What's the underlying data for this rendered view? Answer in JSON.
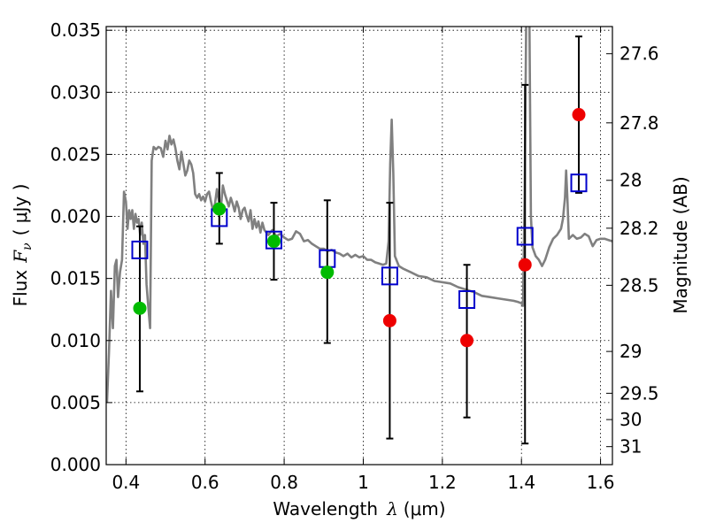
{
  "chart_data": {
    "type": "scatter",
    "xlabel_prefix": "Wavelength",
    "xlabel_symbol": "λ",
    "xlabel_unit": "(μm)",
    "ylabel_prefix": "Flux",
    "ylabel_symbol": "F",
    "ylabel_subscript": "ν",
    "ylabel_unit": "( μJy )",
    "y2label": "Magnitude (AB)",
    "xlim": [
      0.35,
      1.63
    ],
    "ylim": [
      0.0,
      0.0353
    ],
    "grid": true,
    "xticks": [
      0.4,
      0.6,
      0.8,
      1.0,
      1.2,
      1.4,
      1.6
    ],
    "xtick_labels": [
      "0.4",
      "0.6",
      "0.8",
      "1",
      "1.2",
      "1.4",
      "1.6"
    ],
    "yticks": [
      0.0,
      0.005,
      0.01,
      0.015,
      0.02,
      0.025,
      0.03,
      0.035
    ],
    "ytick_labels": [
      "0.000",
      "0.005",
      "0.010",
      "0.015",
      "0.020",
      "0.025",
      "0.030",
      "0.035"
    ],
    "y2ticks": [
      {
        "label": "27.6",
        "flux": 0.03311
      },
      {
        "label": "27.8",
        "flux": 0.02754
      },
      {
        "label": "28",
        "flux": 0.02291
      },
      {
        "label": "28.2",
        "flux": 0.01905
      },
      {
        "label": "28.5",
        "flux": 0.01445
      },
      {
        "label": "29",
        "flux": 0.00912
      },
      {
        "label": "29.5",
        "flux": 0.00575
      },
      {
        "label": "30",
        "flux": 0.00363
      },
      {
        "label": "31",
        "flux": 0.00145
      }
    ],
    "sed_model": {
      "color": "#808080",
      "points": [
        [
          0.352,
          0.005
        ],
        [
          0.357,
          0.009
        ],
        [
          0.362,
          0.014
        ],
        [
          0.367,
          0.011
        ],
        [
          0.372,
          0.016
        ],
        [
          0.376,
          0.0165
        ],
        [
          0.38,
          0.0135
        ],
        [
          0.385,
          0.0155
        ],
        [
          0.39,
          0.0165
        ],
        [
          0.395,
          0.022
        ],
        [
          0.4,
          0.0212
        ],
        [
          0.404,
          0.019
        ],
        [
          0.408,
          0.0205
        ],
        [
          0.412,
          0.0198
        ],
        [
          0.416,
          0.0205
        ],
        [
          0.42,
          0.019
        ],
        [
          0.424,
          0.0202
        ],
        [
          0.428,
          0.0195
        ],
        [
          0.432,
          0.0198
        ],
        [
          0.436,
          0.0185
        ],
        [
          0.44,
          0.0195
        ],
        [
          0.444,
          0.0178
        ],
        [
          0.448,
          0.0185
        ],
        [
          0.452,
          0.0145
        ],
        [
          0.457,
          0.0125
        ],
        [
          0.461,
          0.011
        ],
        [
          0.465,
          0.0245
        ],
        [
          0.47,
          0.0256
        ],
        [
          0.476,
          0.0254
        ],
        [
          0.482,
          0.0256
        ],
        [
          0.488,
          0.0255
        ],
        [
          0.494,
          0.0248
        ],
        [
          0.5,
          0.0261
        ],
        [
          0.505,
          0.0254
        ],
        [
          0.51,
          0.0265
        ],
        [
          0.515,
          0.0258
        ],
        [
          0.52,
          0.0262
        ],
        [
          0.525,
          0.0255
        ],
        [
          0.53,
          0.0245
        ],
        [
          0.535,
          0.0238
        ],
        [
          0.54,
          0.0252
        ],
        [
          0.545,
          0.0243
        ],
        [
          0.55,
          0.0233
        ],
        [
          0.555,
          0.0237
        ],
        [
          0.56,
          0.0245
        ],
        [
          0.565,
          0.0242
        ],
        [
          0.57,
          0.0235
        ],
        [
          0.575,
          0.0218
        ],
        [
          0.58,
          0.0215
        ],
        [
          0.585,
          0.0218
        ],
        [
          0.59,
          0.0213
        ],
        [
          0.595,
          0.0216
        ],
        [
          0.6,
          0.0212
        ],
        [
          0.605,
          0.0218
        ],
        [
          0.61,
          0.022
        ],
        [
          0.615,
          0.0212
        ],
        [
          0.62,
          0.0205
        ],
        [
          0.625,
          0.021
        ],
        [
          0.63,
          0.0222
        ],
        [
          0.635,
          0.0212
        ],
        [
          0.64,
          0.0207
        ],
        [
          0.645,
          0.0225
        ],
        [
          0.65,
          0.0218
        ],
        [
          0.655,
          0.0213
        ],
        [
          0.66,
          0.0208
        ],
        [
          0.665,
          0.0215
        ],
        [
          0.67,
          0.021
        ],
        [
          0.675,
          0.0204
        ],
        [
          0.68,
          0.0212
        ],
        [
          0.685,
          0.0207
        ],
        [
          0.69,
          0.0198
        ],
        [
          0.695,
          0.0205
        ],
        [
          0.7,
          0.0207
        ],
        [
          0.705,
          0.0201
        ],
        [
          0.71,
          0.0196
        ],
        [
          0.715,
          0.0205
        ],
        [
          0.72,
          0.019
        ],
        [
          0.725,
          0.0198
        ],
        [
          0.73,
          0.0191
        ],
        [
          0.735,
          0.0196
        ],
        [
          0.74,
          0.0187
        ],
        [
          0.745,
          0.0195
        ],
        [
          0.75,
          0.0189
        ],
        [
          0.76,
          0.0185
        ],
        [
          0.77,
          0.0189
        ],
        [
          0.78,
          0.0184
        ],
        [
          0.79,
          0.0186
        ],
        [
          0.8,
          0.0183
        ],
        [
          0.81,
          0.0181
        ],
        [
          0.82,
          0.0182
        ],
        [
          0.83,
          0.0188
        ],
        [
          0.84,
          0.0186
        ],
        [
          0.85,
          0.018
        ],
        [
          0.86,
          0.0181
        ],
        [
          0.87,
          0.0178
        ],
        [
          0.88,
          0.0176
        ],
        [
          0.89,
          0.0174
        ],
        [
          0.9,
          0.0174
        ],
        [
          0.91,
          0.0172
        ],
        [
          0.92,
          0.0173
        ],
        [
          0.93,
          0.0171
        ],
        [
          0.94,
          0.017
        ],
        [
          0.95,
          0.0168
        ],
        [
          0.96,
          0.017
        ],
        [
          0.97,
          0.0167
        ],
        [
          0.98,
          0.0169
        ],
        [
          0.99,
          0.0167
        ],
        [
          1.0,
          0.0168
        ],
        [
          1.01,
          0.0165
        ],
        [
          1.02,
          0.0165
        ],
        [
          1.03,
          0.0163
        ],
        [
          1.04,
          0.0162
        ],
        [
          1.05,
          0.0161
        ],
        [
          1.058,
          0.0162
        ],
        [
          1.064,
          0.018
        ],
        [
          1.068,
          0.0242
        ],
        [
          1.072,
          0.0278
        ],
        [
          1.076,
          0.0235
        ],
        [
          1.08,
          0.0168
        ],
        [
          1.09,
          0.016
        ],
        [
          1.1,
          0.0158
        ],
        [
          1.12,
          0.0155
        ],
        [
          1.14,
          0.0152
        ],
        [
          1.16,
          0.0151
        ],
        [
          1.18,
          0.0148
        ],
        [
          1.2,
          0.0147
        ],
        [
          1.22,
          0.0146
        ],
        [
          1.24,
          0.0143
        ],
        [
          1.26,
          0.0141
        ],
        [
          1.28,
          0.0139
        ],
        [
          1.3,
          0.0136
        ],
        [
          1.32,
          0.0135
        ],
        [
          1.34,
          0.0134
        ],
        [
          1.36,
          0.0133
        ],
        [
          1.38,
          0.0132
        ],
        [
          1.392,
          0.0131
        ],
        [
          1.4,
          0.013
        ],
        [
          1.404,
          0.0128
        ],
        [
          1.408,
          0.0215
        ],
        [
          1.412,
          0.036
        ],
        [
          1.416,
          0.036
        ],
        [
          1.42,
          0.036
        ],
        [
          1.424,
          0.02
        ],
        [
          1.428,
          0.0175
        ],
        [
          1.436,
          0.0168
        ],
        [
          1.444,
          0.0165
        ],
        [
          1.452,
          0.016
        ],
        [
          1.46,
          0.0165
        ],
        [
          1.47,
          0.0175
        ],
        [
          1.48,
          0.0182
        ],
        [
          1.49,
          0.0185
        ],
        [
          1.5,
          0.019
        ],
        [
          1.505,
          0.0198
        ],
        [
          1.51,
          0.0215
        ],
        [
          1.513,
          0.0237
        ],
        [
          1.516,
          0.0215
        ],
        [
          1.52,
          0.0182
        ],
        [
          1.53,
          0.0185
        ],
        [
          1.54,
          0.0182
        ],
        [
          1.55,
          0.0183
        ],
        [
          1.56,
          0.0186
        ],
        [
          1.57,
          0.0184
        ],
        [
          1.58,
          0.0176
        ],
        [
          1.59,
          0.0181
        ],
        [
          1.6,
          0.0182
        ],
        [
          1.61,
          0.0182
        ],
        [
          1.62,
          0.0181
        ],
        [
          1.63,
          0.018
        ]
      ]
    },
    "model_photometry": {
      "marker": "open-square",
      "color": "#0000cc",
      "points": [
        {
          "x": 0.435,
          "y": 0.0173
        },
        {
          "x": 0.636,
          "y": 0.0199
        },
        {
          "x": 0.774,
          "y": 0.0181
        },
        {
          "x": 0.909,
          "y": 0.0166
        },
        {
          "x": 1.067,
          "y": 0.0152
        },
        {
          "x": 1.262,
          "y": 0.0133
        },
        {
          "x": 1.409,
          "y": 0.0184
        },
        {
          "x": 1.545,
          "y": 0.0227
        }
      ]
    },
    "observed_photometry": {
      "marker": "filled-circle",
      "points": [
        {
          "x": 0.435,
          "y": 0.0126,
          "yerr_low": 0.0059,
          "yerr_high": 0.0192,
          "color": "#00bb00"
        },
        {
          "x": 0.636,
          "y": 0.0206,
          "yerr_low": 0.0178,
          "yerr_high": 0.0235,
          "color": "#00bb00"
        },
        {
          "x": 0.774,
          "y": 0.018,
          "yerr_low": 0.0149,
          "yerr_high": 0.0211,
          "color": "#00bb00"
        },
        {
          "x": 0.909,
          "y": 0.0155,
          "yerr_low": 0.0098,
          "yerr_high": 0.0213,
          "color": "#00bb00"
        },
        {
          "x": 1.067,
          "y": 0.0116,
          "yerr_low": 0.0021,
          "yerr_high": 0.0211,
          "color": "#ee0000"
        },
        {
          "x": 1.262,
          "y": 0.01,
          "yerr_low": 0.0038,
          "yerr_high": 0.0161,
          "color": "#ee0000"
        },
        {
          "x": 1.409,
          "y": 0.0161,
          "yerr_low": 0.0017,
          "yerr_high": 0.0306,
          "color": "#ee0000"
        },
        {
          "x": 1.545,
          "y": 0.0282,
          "yerr_low": 0.0219,
          "yerr_high": 0.0345,
          "color": "#ee0000"
        }
      ]
    }
  }
}
